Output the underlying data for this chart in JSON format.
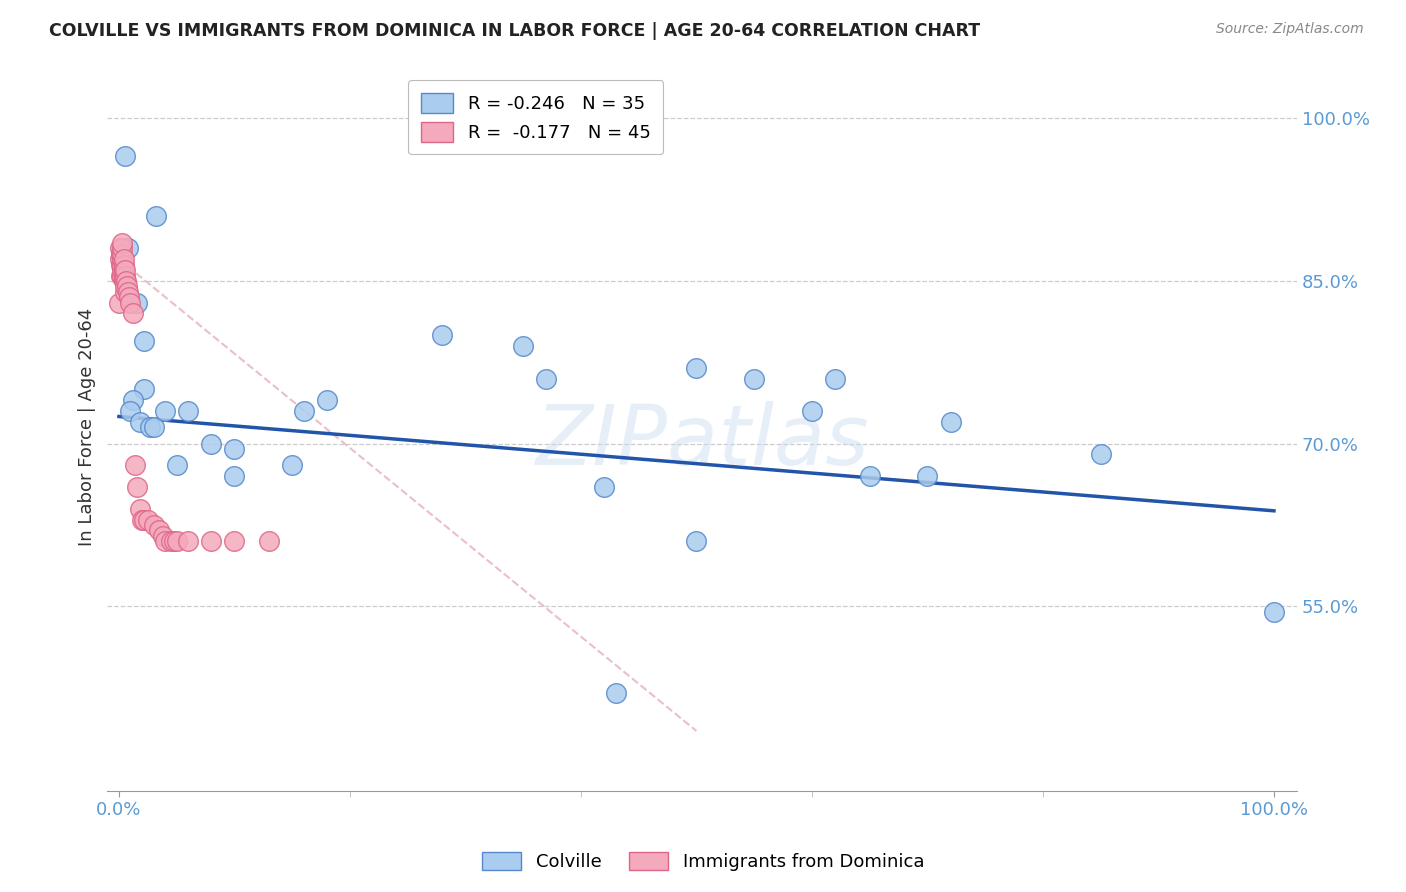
{
  "title": "COLVILLE VS IMMIGRANTS FROM DOMINICA IN LABOR FORCE | AGE 20-64 CORRELATION CHART",
  "source": "Source: ZipAtlas.com",
  "ylabel": "In Labor Force | Age 20-64",
  "ytick_values": [
    1.0,
    0.85,
    0.7,
    0.55
  ],
  "xlim": [
    -0.01,
    1.02
  ],
  "ylim": [
    0.38,
    1.05
  ],
  "watermark": "ZIPatlas",
  "colville_R": "-0.246",
  "colville_N": "35",
  "dominica_R": "-0.177",
  "dominica_N": "45",
  "colville_color": "#aaccee",
  "colville_edge": "#5588cc",
  "dominica_color": "#f4aabc",
  "dominica_edge": "#dd6688",
  "colville_x": [
    0.032,
    0.008,
    0.016,
    0.022,
    0.022,
    0.012,
    0.01,
    0.018,
    0.027,
    0.03,
    0.04,
    0.05,
    0.06,
    0.08,
    0.1,
    0.1,
    0.15,
    0.16,
    0.18,
    0.28,
    0.35,
    0.37,
    0.42,
    0.5,
    0.5,
    0.55,
    0.6,
    0.62,
    0.65,
    0.7,
    0.72,
    0.85,
    1.0,
    0.43,
    0.005
  ],
  "colville_y": [
    0.91,
    0.88,
    0.83,
    0.795,
    0.75,
    0.74,
    0.73,
    0.72,
    0.715,
    0.715,
    0.73,
    0.68,
    0.73,
    0.7,
    0.695,
    0.67,
    0.68,
    0.73,
    0.74,
    0.8,
    0.79,
    0.76,
    0.66,
    0.61,
    0.77,
    0.76,
    0.73,
    0.76,
    0.67,
    0.67,
    0.72,
    0.69,
    0.545,
    0.47,
    0.965
  ],
  "dominica_x": [
    0.0,
    0.001,
    0.001,
    0.002,
    0.002,
    0.002,
    0.003,
    0.003,
    0.003,
    0.003,
    0.003,
    0.003,
    0.003,
    0.004,
    0.004,
    0.004,
    0.004,
    0.004,
    0.005,
    0.005,
    0.005,
    0.005,
    0.006,
    0.007,
    0.008,
    0.009,
    0.01,
    0.012,
    0.014,
    0.016,
    0.018,
    0.02,
    0.022,
    0.025,
    0.03,
    0.035,
    0.038,
    0.04,
    0.045,
    0.048,
    0.05,
    0.06,
    0.08,
    0.1,
    0.13
  ],
  "dominica_y": [
    0.83,
    0.87,
    0.88,
    0.855,
    0.865,
    0.875,
    0.855,
    0.86,
    0.865,
    0.87,
    0.875,
    0.88,
    0.885,
    0.85,
    0.855,
    0.86,
    0.865,
    0.87,
    0.84,
    0.845,
    0.855,
    0.86,
    0.85,
    0.845,
    0.84,
    0.835,
    0.83,
    0.82,
    0.68,
    0.66,
    0.64,
    0.63,
    0.63,
    0.63,
    0.625,
    0.62,
    0.615,
    0.61,
    0.61,
    0.61,
    0.61,
    0.61,
    0.61,
    0.61,
    0.61
  ],
  "colville_line_x": [
    0.0,
    1.0
  ],
  "colville_line_y": [
    0.725,
    0.638
  ],
  "dominica_line_x": [
    0.0,
    0.5
  ],
  "dominica_line_y": [
    0.87,
    0.435
  ],
  "legend_label1": "Colville",
  "legend_label2": "Immigrants from Dominica",
  "bg_color": "#ffffff",
  "grid_color": "#cccccc",
  "title_color": "#222222",
  "tick_label_color": "#5b9bd5"
}
